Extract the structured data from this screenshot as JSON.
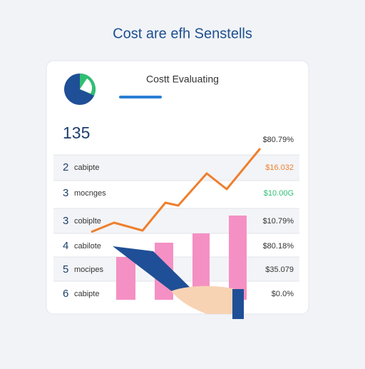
{
  "title": "Cost are efh Senstells",
  "card": {
    "header": "Costt Evaluating",
    "total": "135",
    "total_value": "$80.79%",
    "rows": [
      [
        "2",
        "cabipte",
        "$16.032"
      ],
      [
        "3",
        "mocnges",
        "$10.00G"
      ],
      [
        "3",
        "cobiplte",
        "$10.79%"
      ],
      [
        "4",
        "cabilote",
        "$80.18%"
      ],
      [
        "5",
        "mocipes",
        "$35.079"
      ],
      [
        "6",
        "cabipte",
        "$0.0%"
      ]
    ]
  }
}
